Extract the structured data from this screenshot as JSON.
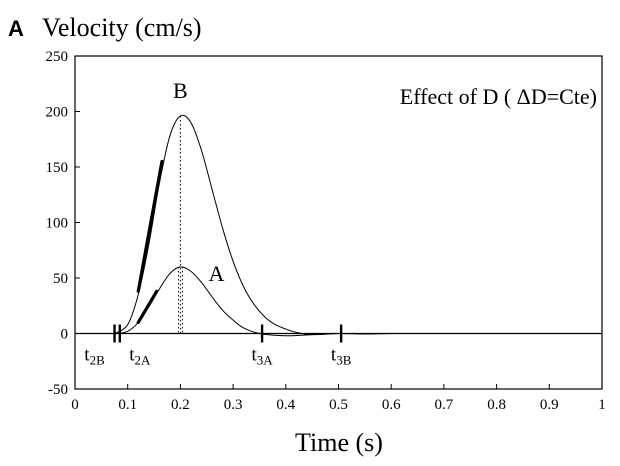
{
  "chart_data": {
    "type": "line",
    "panel_label": "A",
    "ylabel": "Velocity (cm/s)",
    "xlabel": "Time (s)",
    "annotation": "Effect of D ( ΔD=Cte)",
    "xlim": [
      0,
      1
    ],
    "ylim": [
      -50,
      250
    ],
    "xticks": [
      0,
      0.1,
      0.2,
      0.3,
      0.4,
      0.5,
      0.6,
      0.7,
      0.8,
      0.9,
      1
    ],
    "xtick_labels": [
      "0",
      "0.1",
      "0.2",
      "0.3",
      "0.4",
      "0.5",
      "0.6",
      "0.7",
      "0.8",
      "0.9",
      "1"
    ],
    "yticks": [
      -50,
      0,
      50,
      100,
      150,
      200,
      250
    ],
    "ytick_labels": [
      "-50",
      "0",
      "50",
      "100",
      "150",
      "200",
      "250"
    ],
    "grid": false,
    "series": [
      {
        "name": "A",
        "x": [
          0.08,
          0.1,
          0.12,
          0.14,
          0.16,
          0.18,
          0.2,
          0.22,
          0.24,
          0.26,
          0.28,
          0.3,
          0.32,
          0.35,
          0.4,
          0.45,
          0.5
        ],
        "y": [
          0,
          2,
          10,
          24,
          40,
          54,
          60,
          56,
          46,
          33,
          21,
          12,
          5,
          0,
          -2,
          -1,
          0
        ],
        "peak": {
          "x": 0.2,
          "y": 60
        },
        "tangent": {
          "x": [
            0.12,
            0.155
          ],
          "y": [
            10,
            38
          ]
        }
      },
      {
        "name": "B",
        "x": [
          0.075,
          0.1,
          0.12,
          0.14,
          0.16,
          0.18,
          0.2,
          0.22,
          0.24,
          0.26,
          0.28,
          0.3,
          0.32,
          0.34,
          0.36,
          0.38,
          0.4,
          0.42,
          0.45,
          0.5,
          0.55,
          0.6,
          0.64
        ],
        "y": [
          0,
          8,
          35,
          80,
          135,
          178,
          196,
          190,
          165,
          130,
          95,
          65,
          42,
          26,
          15,
          8,
          4,
          1,
          -1,
          0,
          -0.5,
          0,
          0
        ],
        "peak": {
          "x": 0.2,
          "y": 196
        },
        "tangent": {
          "x": [
            0.12,
            0.165
          ],
          "y": [
            38,
            155
          ]
        }
      }
    ],
    "time_markers": [
      {
        "x": 0.075,
        "label": "t",
        "sub": "2B"
      },
      {
        "x": 0.085,
        "label": "t",
        "sub": "2A"
      },
      {
        "x": 0.355,
        "label": "t",
        "sub": "3A"
      },
      {
        "x": 0.505,
        "label": "t",
        "sub": "3B"
      }
    ]
  }
}
